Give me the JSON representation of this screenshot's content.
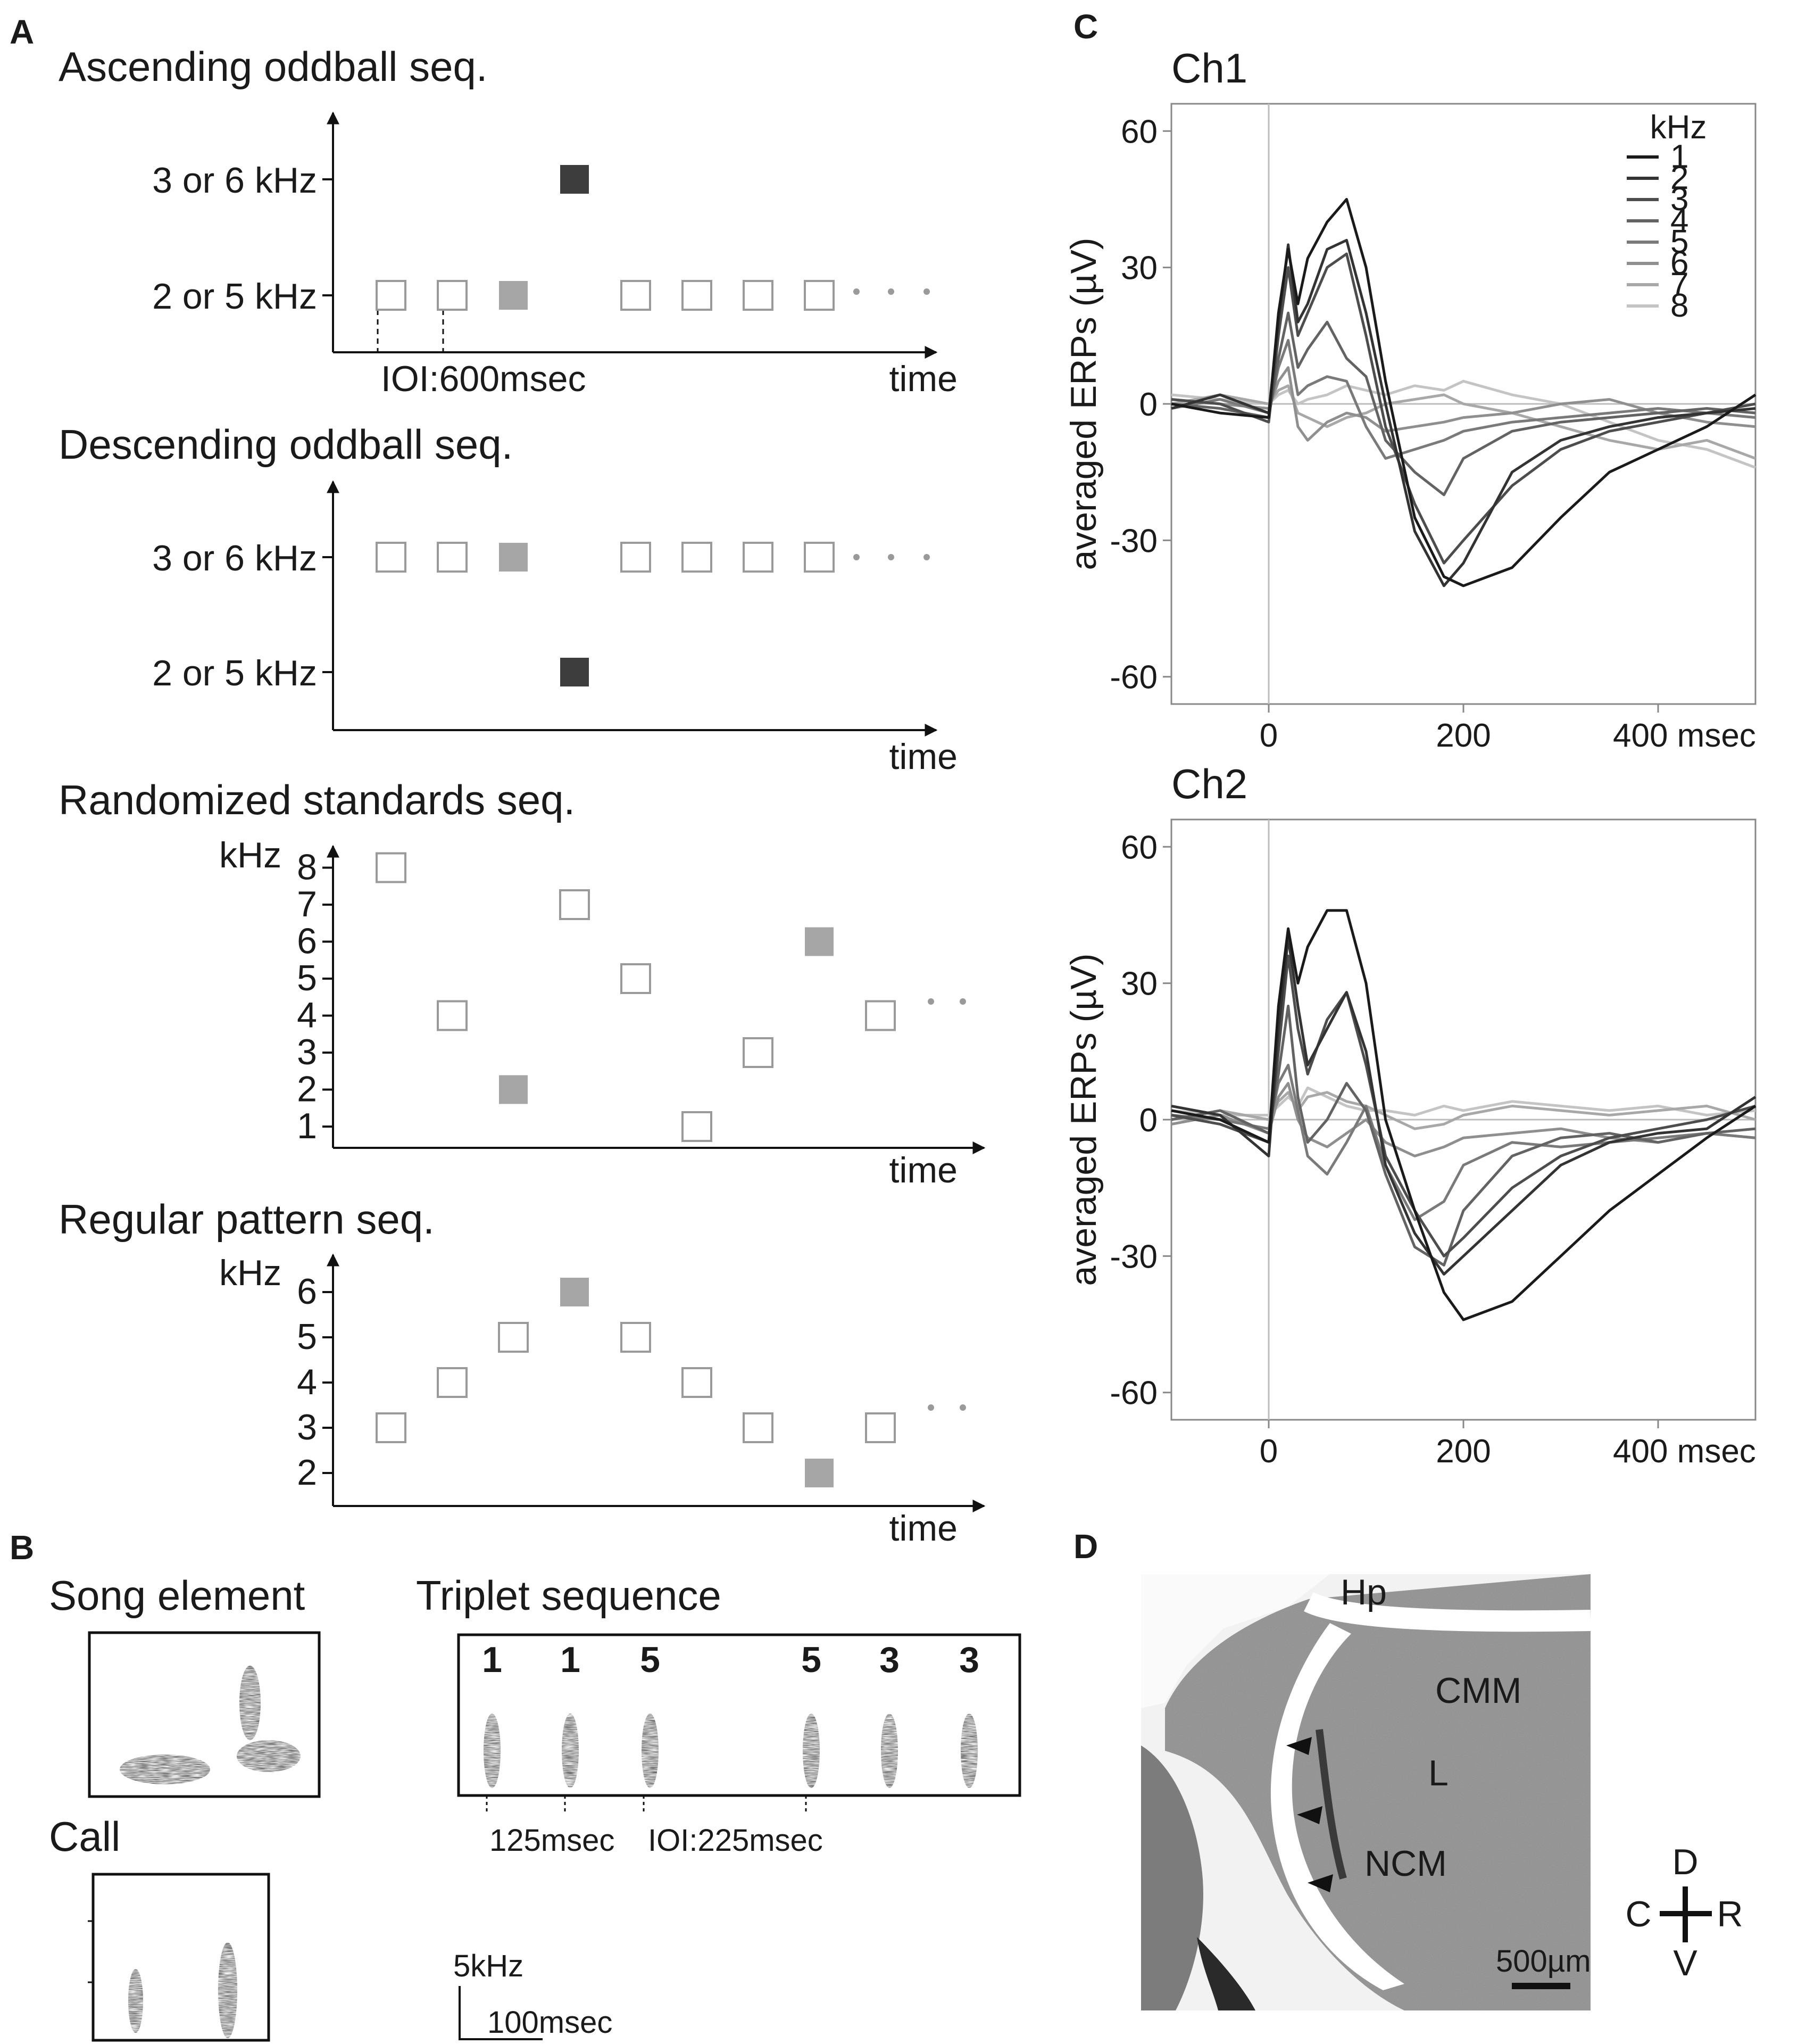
{
  "panels": {
    "a": {
      "letter": "A"
    },
    "b": {
      "letter": "B"
    },
    "c": {
      "letter": "C"
    },
    "d": {
      "letter": "D"
    }
  },
  "panel_a": {
    "ascending": {
      "title": "Ascending oddball seq.",
      "y_labels": [
        "3 or 6 kHz",
        "2 or 5 kHz"
      ],
      "ioi_label": "IOI:600msec",
      "x_label": "time",
      "sequence": [
        {
          "row": 1,
          "fill": "open"
        },
        {
          "row": 1,
          "fill": "open"
        },
        {
          "row": 1,
          "fill": "gray"
        },
        {
          "row": 0,
          "fill": "dark"
        },
        {
          "row": 1,
          "fill": "open"
        },
        {
          "row": 1,
          "fill": "open"
        },
        {
          "row": 1,
          "fill": "open"
        },
        {
          "row": 1,
          "fill": "open"
        }
      ]
    },
    "descending": {
      "title": "Descending oddball seq.",
      "y_labels": [
        "3 or 6 kHz",
        "2 or 5 kHz"
      ],
      "x_label": "time",
      "sequence": [
        {
          "row": 0,
          "fill": "open"
        },
        {
          "row": 0,
          "fill": "open"
        },
        {
          "row": 0,
          "fill": "gray"
        },
        {
          "row": 1,
          "fill": "dark"
        },
        {
          "row": 0,
          "fill": "open"
        },
        {
          "row": 0,
          "fill": "open"
        },
        {
          "row": 0,
          "fill": "open"
        },
        {
          "row": 0,
          "fill": "open"
        }
      ]
    },
    "randomized": {
      "title": "Randomized standards seq.",
      "unit": "kHz",
      "y_ticks": [
        "8",
        "7",
        "6",
        "5",
        "4",
        "3",
        "2",
        "1"
      ],
      "x_label": "time",
      "sequence": [
        {
          "khz": 8,
          "fill": "open"
        },
        {
          "khz": 4,
          "fill": "open"
        },
        {
          "khz": 2,
          "fill": "gray"
        },
        {
          "khz": 7,
          "fill": "open"
        },
        {
          "khz": 5,
          "fill": "open"
        },
        {
          "khz": 1,
          "fill": "open"
        },
        {
          "khz": 3,
          "fill": "open"
        },
        {
          "khz": 6,
          "fill": "gray"
        },
        {
          "khz": 4,
          "fill": "open"
        }
      ]
    },
    "regular": {
      "title": "Regular pattern seq.",
      "unit": "kHz",
      "y_ticks": [
        "6",
        "5",
        "4",
        "3",
        "2"
      ],
      "x_label": "time",
      "sequence": [
        {
          "khz": 3,
          "fill": "open"
        },
        {
          "khz": 4,
          "fill": "open"
        },
        {
          "khz": 5,
          "fill": "open"
        },
        {
          "khz": 6,
          "fill": "gray"
        },
        {
          "khz": 5,
          "fill": "open"
        },
        {
          "khz": 4,
          "fill": "open"
        },
        {
          "khz": 3,
          "fill": "open"
        },
        {
          "khz": 2,
          "fill": "gray"
        },
        {
          "khz": 3,
          "fill": "open"
        }
      ]
    }
  },
  "panel_b": {
    "song_title": "Song element",
    "call_title": "Call",
    "triplet_title": "Triplet sequence",
    "triplet_numbers": [
      "1",
      "1",
      "5",
      "5",
      "3",
      "3"
    ],
    "interval_1": "125msec",
    "interval_2": "IOI:225msec",
    "scale_freq": "5kHz",
    "scale_time": "100msec"
  },
  "chart_data": [
    {
      "type": "line",
      "title": "Ch1",
      "ylabel": "averaged ERPs (µV)",
      "xlabel": "msec",
      "x_ticks": [
        "0",
        "200",
        "400 msec"
      ],
      "y_ticks": [
        "60",
        "30",
        "0",
        "-30",
        "-60"
      ],
      "xlim": [
        -100,
        500
      ],
      "ylim": [
        -66,
        66
      ],
      "legend_title": "kHz",
      "legend_position": "top-right",
      "x": [
        -100,
        -50,
        0,
        10,
        20,
        30,
        40,
        60,
        80,
        100,
        120,
        150,
        180,
        200,
        250,
        300,
        350,
        400,
        450,
        500
      ],
      "series": [
        {
          "name": "1",
          "color": "#1a1a1a",
          "values": [
            0,
            -2,
            -3,
            20,
            34,
            22,
            32,
            40,
            45,
            30,
            5,
            -25,
            -38,
            -40,
            -36,
            -25,
            -15,
            -10,
            -5,
            2
          ]
        },
        {
          "name": "2",
          "color": "#333333",
          "values": [
            -1,
            2,
            -2,
            18,
            35,
            18,
            22,
            34,
            36,
            20,
            0,
            -28,
            -40,
            -35,
            -15,
            -8,
            -5,
            -3,
            -2,
            -1
          ]
        },
        {
          "name": "3",
          "color": "#4d4d4d",
          "values": [
            1,
            0,
            -4,
            15,
            30,
            15,
            20,
            30,
            33,
            15,
            -5,
            -22,
            -35,
            -30,
            -18,
            -10,
            -6,
            -4,
            -2,
            0
          ]
        },
        {
          "name": "4",
          "color": "#636363",
          "values": [
            0,
            -1,
            -3,
            10,
            20,
            8,
            12,
            18,
            10,
            6,
            -8,
            -15,
            -20,
            -12,
            -6,
            -4,
            -3,
            -2,
            -1,
            -2
          ]
        },
        {
          "name": "5",
          "color": "#7a7a7a",
          "values": [
            -1,
            1,
            -2,
            8,
            14,
            2,
            4,
            6,
            5,
            -5,
            -12,
            -10,
            -8,
            -6,
            -4,
            -3,
            -2,
            -1,
            -2,
            -3
          ]
        },
        {
          "name": "6",
          "color": "#8f8f8f",
          "values": [
            1,
            0,
            -1,
            5,
            8,
            -5,
            -8,
            -4,
            -2,
            -3,
            -6,
            -5,
            -4,
            -3,
            -2,
            0,
            1,
            -2,
            -4,
            -5
          ]
        },
        {
          "name": "7",
          "color": "#a8a8a8",
          "values": [
            0,
            2,
            0,
            3,
            4,
            -2,
            -3,
            -5,
            -3,
            -2,
            0,
            1,
            2,
            0,
            -2,
            -5,
            -8,
            -10,
            -8,
            -12
          ]
        },
        {
          "name": "8",
          "color": "#c4c4c4",
          "values": [
            2,
            1,
            0,
            2,
            3,
            0,
            1,
            2,
            4,
            3,
            2,
            4,
            3,
            5,
            2,
            0,
            -4,
            -8,
            -10,
            -14
          ]
        }
      ]
    },
    {
      "type": "line",
      "title": "Ch2",
      "ylabel": "averaged ERPs (µV)",
      "xlabel": "msec",
      "x_ticks": [
        "0",
        "200",
        "400 msec"
      ],
      "y_ticks": [
        "60",
        "30",
        "0",
        "-30",
        "-60"
      ],
      "xlim": [
        -100,
        500
      ],
      "ylim": [
        -66,
        66
      ],
      "x": [
        -100,
        -50,
        0,
        10,
        20,
        30,
        40,
        60,
        80,
        100,
        120,
        150,
        180,
        200,
        250,
        300,
        350,
        400,
        450,
        500
      ],
      "series": [
        {
          "name": "1",
          "color": "#1a1a1a",
          "values": [
            2,
            0,
            -5,
            25,
            42,
            30,
            38,
            46,
            46,
            30,
            0,
            -20,
            -38,
            -44,
            -40,
            -30,
            -20,
            -12,
            -4,
            3
          ]
        },
        {
          "name": "2",
          "color": "#333333",
          "values": [
            3,
            1,
            -8,
            20,
            40,
            25,
            12,
            20,
            28,
            15,
            -10,
            -25,
            -34,
            -30,
            -20,
            -10,
            -5,
            -3,
            -2,
            5
          ]
        },
        {
          "name": "3",
          "color": "#4d4d4d",
          "values": [
            1,
            -1,
            -5,
            15,
            36,
            20,
            10,
            22,
            28,
            12,
            -8,
            -20,
            -30,
            -26,
            -15,
            -8,
            -4,
            -2,
            0,
            3
          ]
        },
        {
          "name": "4",
          "color": "#636363",
          "values": [
            0,
            2,
            -3,
            10,
            25,
            5,
            -5,
            0,
            8,
            2,
            -12,
            -28,
            -32,
            -20,
            -8,
            -4,
            -3,
            -5,
            -3,
            -2
          ]
        },
        {
          "name": "5",
          "color": "#7a7a7a",
          "values": [
            1,
            0,
            -2,
            8,
            12,
            2,
            -8,
            -12,
            -5,
            3,
            -10,
            -22,
            -18,
            -10,
            -5,
            -6,
            -5,
            -4,
            -3,
            -4
          ]
        },
        {
          "name": "6",
          "color": "#8f8f8f",
          "values": [
            -1,
            1,
            -3,
            5,
            8,
            0,
            -4,
            -6,
            -3,
            0,
            -5,
            -8,
            -6,
            -4,
            -3,
            -2,
            -4,
            -5,
            -3,
            -4
          ]
        },
        {
          "name": "7",
          "color": "#a8a8a8",
          "values": [
            0,
            2,
            0,
            4,
            6,
            2,
            5,
            6,
            4,
            3,
            1,
            -2,
            -1,
            1,
            3,
            2,
            1,
            2,
            3,
            0
          ]
        },
        {
          "name": "8",
          "color": "#c4c4c4",
          "values": [
            2,
            1,
            1,
            3,
            5,
            3,
            7,
            5,
            3,
            2,
            2,
            1,
            3,
            2,
            4,
            3,
            2,
            3,
            1,
            2
          ]
        }
      ]
    }
  ],
  "panel_d": {
    "labels": {
      "hp": "Hp",
      "cmm": "CMM",
      "l": "L",
      "ncm": "NCM"
    },
    "scale_bar": "500µm",
    "compass": {
      "d": "D",
      "v": "V",
      "c": "C",
      "r": "R"
    }
  }
}
